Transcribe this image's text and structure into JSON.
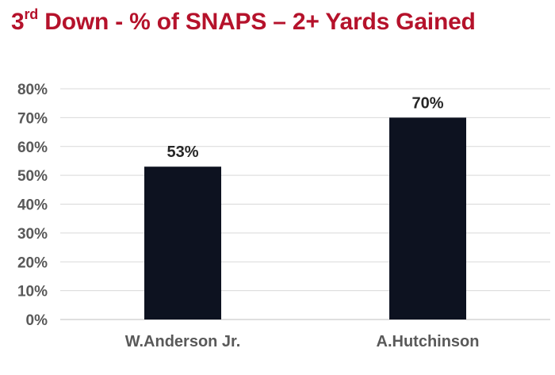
{
  "title": {
    "prefix": "3",
    "superscript": "rd",
    "rest": " Down - % of SNAPS – 2+ Yards Gained",
    "color": "#b5122b"
  },
  "chart_data": {
    "type": "bar",
    "categories": [
      "W.Anderson Jr.",
      "A.Hutchinson"
    ],
    "values": [
      53,
      70
    ],
    "data_labels": [
      "53%",
      "70%"
    ],
    "yticks": [
      "0%",
      "10%",
      "20%",
      "30%",
      "40%",
      "50%",
      "60%",
      "70%",
      "80%"
    ],
    "ylim": [
      0,
      80
    ],
    "grid": true,
    "legend": "none",
    "bar_color": "#0d1220",
    "xlabel": "",
    "ylabel": ""
  }
}
